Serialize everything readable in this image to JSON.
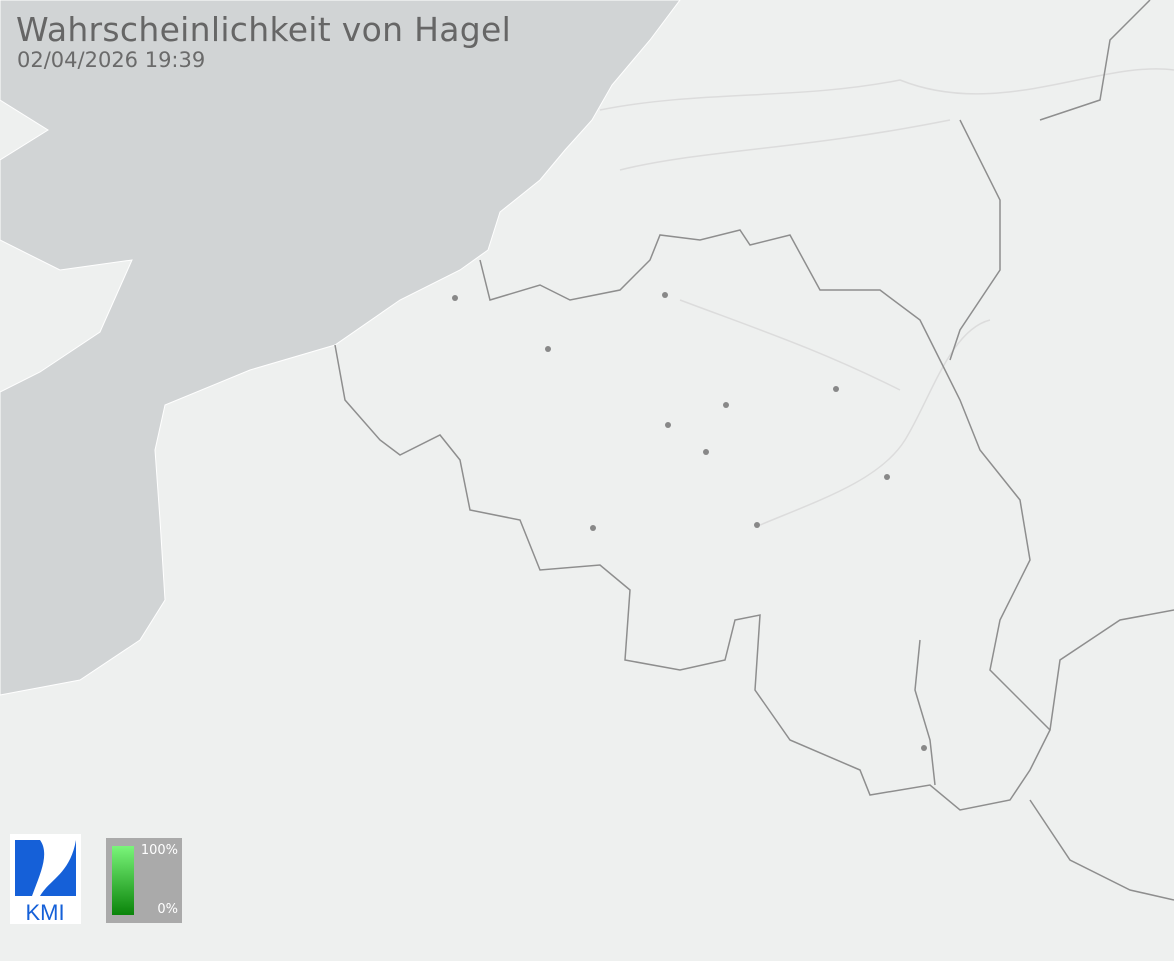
{
  "title": "Wahrscheinlichkeit von Hagel",
  "timestamp": "02/04/2026 19:39",
  "legend": {
    "max_label": "100%",
    "min_label": "0%",
    "color_high": "#7af57a",
    "color_low": "#0a840a"
  },
  "logo": {
    "text": "KMI",
    "color": "#1560d8"
  },
  "colors": {
    "sea": "#d1d4d5",
    "land": "#eef0ef",
    "border": "#8a8a8a",
    "city": "#888888"
  }
}
